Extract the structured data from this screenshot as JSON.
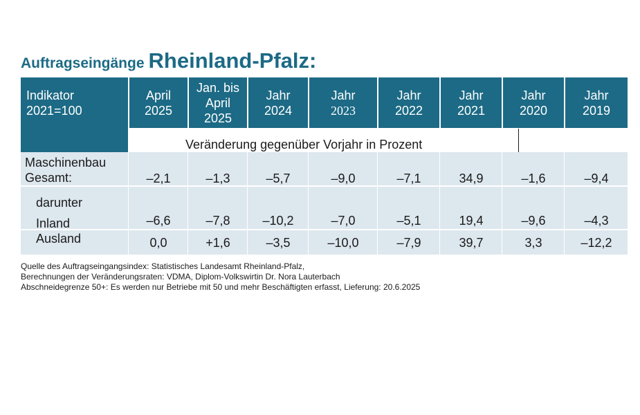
{
  "title": {
    "prefix": "Auftragseingänge",
    "main": "Rheinland-Pfalz:"
  },
  "table": {
    "indicator_header": [
      "Indikator",
      "2021=100"
    ],
    "columns": [
      [
        "April",
        "2025"
      ],
      [
        "Jan. bis",
        "April",
        "2025"
      ],
      [
        "Jahr",
        "2024"
      ],
      [
        "Jahr",
        "2023"
      ],
      [
        "Jahr",
        "2022"
      ],
      [
        "Jahr",
        "2021"
      ],
      [
        "Jahr",
        "2020"
      ],
      [
        "Jahr",
        "2019"
      ]
    ],
    "subtitle": "Veränderung gegenüber Vorjahr in Prozent",
    "rows": [
      {
        "label": [
          "Maschinenbau",
          "Gesamt:"
        ],
        "values": [
          "–2,1",
          "–1,3",
          "–5,7",
          "–9,0",
          "–7,1",
          "34,9",
          "–1,6",
          "–9,4"
        ]
      },
      {
        "label": [
          "darunter",
          "Inland"
        ],
        "values": [
          "–6,6",
          "–7,8",
          "–10,2",
          "–7,0",
          "–5,1",
          "19,4",
          "–9,6",
          "–4,3"
        ]
      },
      {
        "label": [
          "Ausland"
        ],
        "values": [
          "0,0",
          "+1,6",
          "–3,5",
          "–10,0",
          "–7,9",
          "39,7",
          "3,3",
          "–12,2"
        ]
      }
    ]
  },
  "footnotes": [
    "Quelle des Auftragseingangsindex: Statistisches Landesamt Rheinland-Pfalz,",
    "Berechnungen der Veränderungsraten: VDMA, Diplom-Volkswirtin Dr. Nora Lauterbach",
    "Abschneidegrenze 50+: Es werden nur Betriebe mit 50 und mehr Beschäftigten erfasst, Lieferung: 20.6.2025"
  ]
}
